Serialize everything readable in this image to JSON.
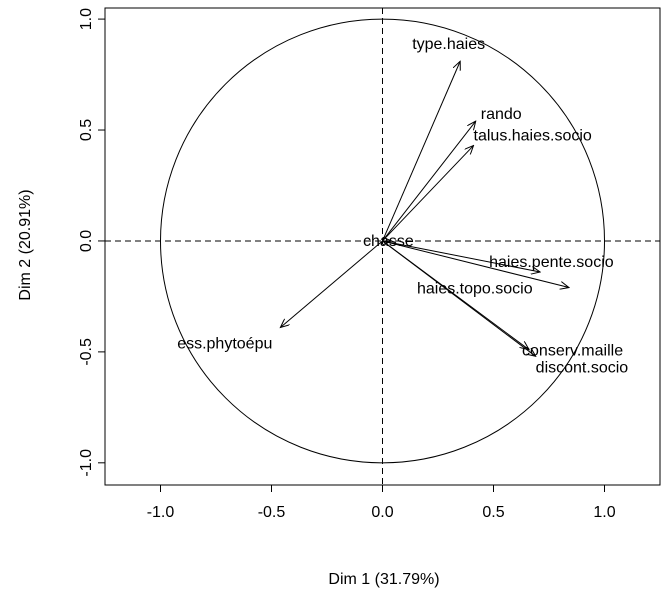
{
  "chart_data": {
    "type": "pca-correlation-circle",
    "xlabel": "Dim 1 (31.79%)",
    "ylabel": "Dim 2 (20.91%)",
    "xlim": [
      -1.25,
      1.25
    ],
    "ylim": [
      -1.1,
      1.05
    ],
    "x_ticks": [
      -1.0,
      -0.5,
      0.0,
      0.5,
      1.0
    ],
    "x_tick_labels": [
      "-1.0",
      "-0.5",
      "0.0",
      "0.5",
      "1.0"
    ],
    "y_ticks": [
      -1.0,
      -0.5,
      0.0,
      0.5,
      1.0
    ],
    "y_tick_labels": [
      "-1.0",
      "-0.5",
      "0.0",
      "0.5",
      "1.0"
    ],
    "unit_circle_radius": 1.0,
    "reference_lines": [
      0,
      0
    ],
    "variables": [
      {
        "name": "type.haies",
        "x": 0.35,
        "y": 0.81
      },
      {
        "name": "rando",
        "x": 0.42,
        "y": 0.54
      },
      {
        "name": "talus.haies.socio",
        "x": 0.41,
        "y": 0.43
      },
      {
        "name": "chasse",
        "x": 0.04,
        "y": 0.0
      },
      {
        "name": "haies.pente.socio",
        "x": 0.71,
        "y": -0.14
      },
      {
        "name": "haies.topo.socio",
        "x": 0.84,
        "y": -0.21
      },
      {
        "name": "ess.phytoépu",
        "x": -0.46,
        "y": -0.39
      },
      {
        "name": "conserv.maille",
        "x": 0.66,
        "y": -0.49
      },
      {
        "name": "discont.socio",
        "x": 0.69,
        "y": -0.52
      }
    ]
  }
}
